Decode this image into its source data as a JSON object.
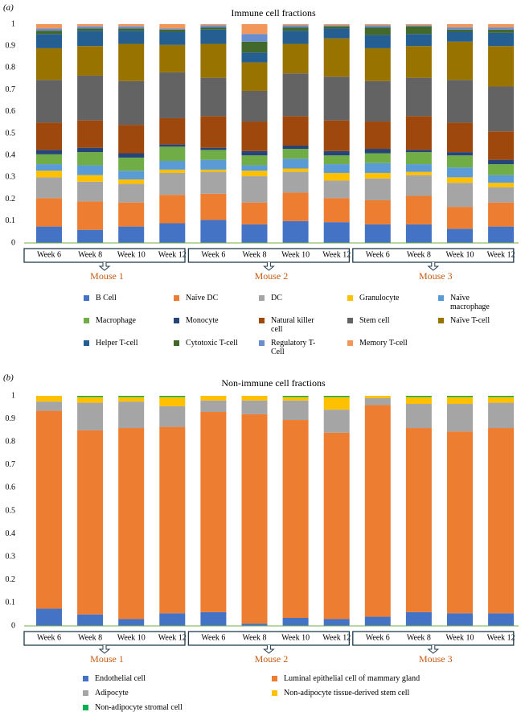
{
  "chart_data": [
    {
      "type": "bar",
      "stacked": true,
      "panel_label": "(a)",
      "title": "Immune cell fractions",
      "categories": [
        "Week 6",
        "Week 8",
        "Week 10",
        "Week 12",
        "Week 6",
        "Week 8",
        "Week 10",
        "Week 12",
        "Week 6",
        "Week 8",
        "Week 10",
        "Week 12"
      ],
      "groups": [
        "Mouse 1",
        "Mouse 2",
        "Mouse 3"
      ],
      "ylim": [
        0,
        1
      ],
      "yticks": [
        0,
        0.1,
        0.2,
        0.3,
        0.4,
        0.5,
        0.6,
        0.7,
        0.8,
        0.9,
        1
      ],
      "grid": false,
      "series": [
        {
          "name": "B Cell",
          "color": "#4472c4",
          "values": [
            0.075,
            0.06,
            0.075,
            0.09,
            0.105,
            0.085,
            0.1,
            0.095,
            0.085,
            0.085,
            0.065,
            0.075
          ]
        },
        {
          "name": "Naïve DC",
          "color": "#ed7d31",
          "values": [
            0.13,
            0.13,
            0.11,
            0.13,
            0.12,
            0.1,
            0.13,
            0.11,
            0.11,
            0.13,
            0.1,
            0.11
          ]
        },
        {
          "name": "DC",
          "color": "#a5a5a5",
          "values": [
            0.095,
            0.09,
            0.085,
            0.1,
            0.1,
            0.12,
            0.095,
            0.08,
            0.1,
            0.095,
            0.11,
            0.07
          ]
        },
        {
          "name": "Granulocyte",
          "color": "#ffc000",
          "values": [
            0.03,
            0.03,
            0.02,
            0.015,
            0.01,
            0.025,
            0.015,
            0.035,
            0.025,
            0.015,
            0.025,
            0.02
          ]
        },
        {
          "name": "Naïve macrophage",
          "color": "#5b9bd5",
          "values": [
            0.03,
            0.045,
            0.04,
            0.04,
            0.045,
            0.025,
            0.045,
            0.04,
            0.045,
            0.035,
            0.045,
            0.035
          ]
        },
        {
          "name": "Macrophage",
          "color": "#70ad47",
          "values": [
            0.045,
            0.06,
            0.06,
            0.065,
            0.045,
            0.045,
            0.045,
            0.04,
            0.045,
            0.055,
            0.055,
            0.05
          ]
        },
        {
          "name": "Monocyte",
          "color": "#264478",
          "values": [
            0.02,
            0.02,
            0.02,
            0.01,
            0.01,
            0.02,
            0.015,
            0.02,
            0.02,
            0.01,
            0.015,
            0.02
          ]
        },
        {
          "name": "Natural killer cell",
          "color": "#9e480e",
          "values": [
            0.125,
            0.125,
            0.13,
            0.12,
            0.145,
            0.135,
            0.135,
            0.14,
            0.125,
            0.155,
            0.135,
            0.13
          ]
        },
        {
          "name": "Stem cell",
          "color": "#636363",
          "values": [
            0.195,
            0.205,
            0.2,
            0.21,
            0.175,
            0.14,
            0.195,
            0.2,
            0.185,
            0.175,
            0.195,
            0.205
          ]
        },
        {
          "name": "Naïve T-cell",
          "color": "#997300",
          "values": [
            0.145,
            0.135,
            0.17,
            0.125,
            0.155,
            0.13,
            0.135,
            0.175,
            0.15,
            0.145,
            0.175,
            0.185
          ]
        },
        {
          "name": "Helper T-cell",
          "color": "#255e91",
          "values": [
            0.065,
            0.07,
            0.06,
            0.06,
            0.065,
            0.045,
            0.06,
            0.045,
            0.06,
            0.055,
            0.045,
            0.06
          ]
        },
        {
          "name": "Cytotoxic T-cell",
          "color": "#43682b",
          "values": [
            0.015,
            0.01,
            0.01,
            0.01,
            0.01,
            0.05,
            0.015,
            0.01,
            0.035,
            0.035,
            0.01,
            0.015
          ]
        },
        {
          "name": "Regulatory T-Cell",
          "color": "#698ed0",
          "values": [
            0.01,
            0.01,
            0.01,
            0.005,
            0.01,
            0.035,
            0.01,
            0.005,
            0.01,
            0.005,
            0.01,
            0.01
          ]
        },
        {
          "name": "Memory T-cell",
          "color": "#f1975a",
          "values": [
            0.02,
            0.01,
            0.01,
            0.02,
            0.005,
            0.045,
            0.005,
            0.005,
            0.005,
            0.005,
            0.015,
            0.015
          ]
        }
      ]
    },
    {
      "type": "bar",
      "stacked": true,
      "panel_label": "(b)",
      "title": "Non-immune cell fractions",
      "categories": [
        "Week 6",
        "Week 8",
        "Week 10",
        "Week 12",
        "Week 6",
        "Week 8",
        "Week 10",
        "Week 12",
        "Week 6",
        "Week 8",
        "Week 10",
        "Week 12"
      ],
      "groups": [
        "Mouse 1",
        "Mouse 2",
        "Mouse 3"
      ],
      "ylim": [
        0,
        1
      ],
      "yticks": [
        0,
        0.1,
        0.2,
        0.3,
        0.4,
        0.5,
        0.6,
        0.7,
        0.8,
        0.9,
        1
      ],
      "grid": false,
      "series": [
        {
          "name": "Endothelial cell",
          "color": "#4472c4",
          "values": [
            0.075,
            0.05,
            0.03,
            0.055,
            0.06,
            0.01,
            0.035,
            0.03,
            0.04,
            0.06,
            0.055,
            0.055
          ]
        },
        {
          "name": "Luminal epithelial cell of mammary gland",
          "color": "#ed7d31",
          "values": [
            0.86,
            0.8,
            0.83,
            0.81,
            0.87,
            0.91,
            0.86,
            0.81,
            0.92,
            0.8,
            0.79,
            0.805
          ]
        },
        {
          "name": "Adipocyte",
          "color": "#a5a5a5",
          "values": [
            0.04,
            0.12,
            0.115,
            0.09,
            0.05,
            0.06,
            0.085,
            0.1,
            0.03,
            0.105,
            0.12,
            0.11
          ]
        },
        {
          "name": "Non-adipocyte tissue-derived stem cell",
          "color": "#ffc000",
          "values": [
            0.025,
            0.025,
            0.02,
            0.04,
            0.02,
            0.02,
            0.015,
            0.055,
            0.01,
            0.03,
            0.03,
            0.025
          ]
        },
        {
          "name": "Non-adipocyte stromal cell",
          "color": "#00b050",
          "values": [
            0,
            0.005,
            0.005,
            0.005,
            0,
            0,
            0.005,
            0.005,
            0,
            0.005,
            0.005,
            0.005
          ]
        }
      ]
    }
  ]
}
